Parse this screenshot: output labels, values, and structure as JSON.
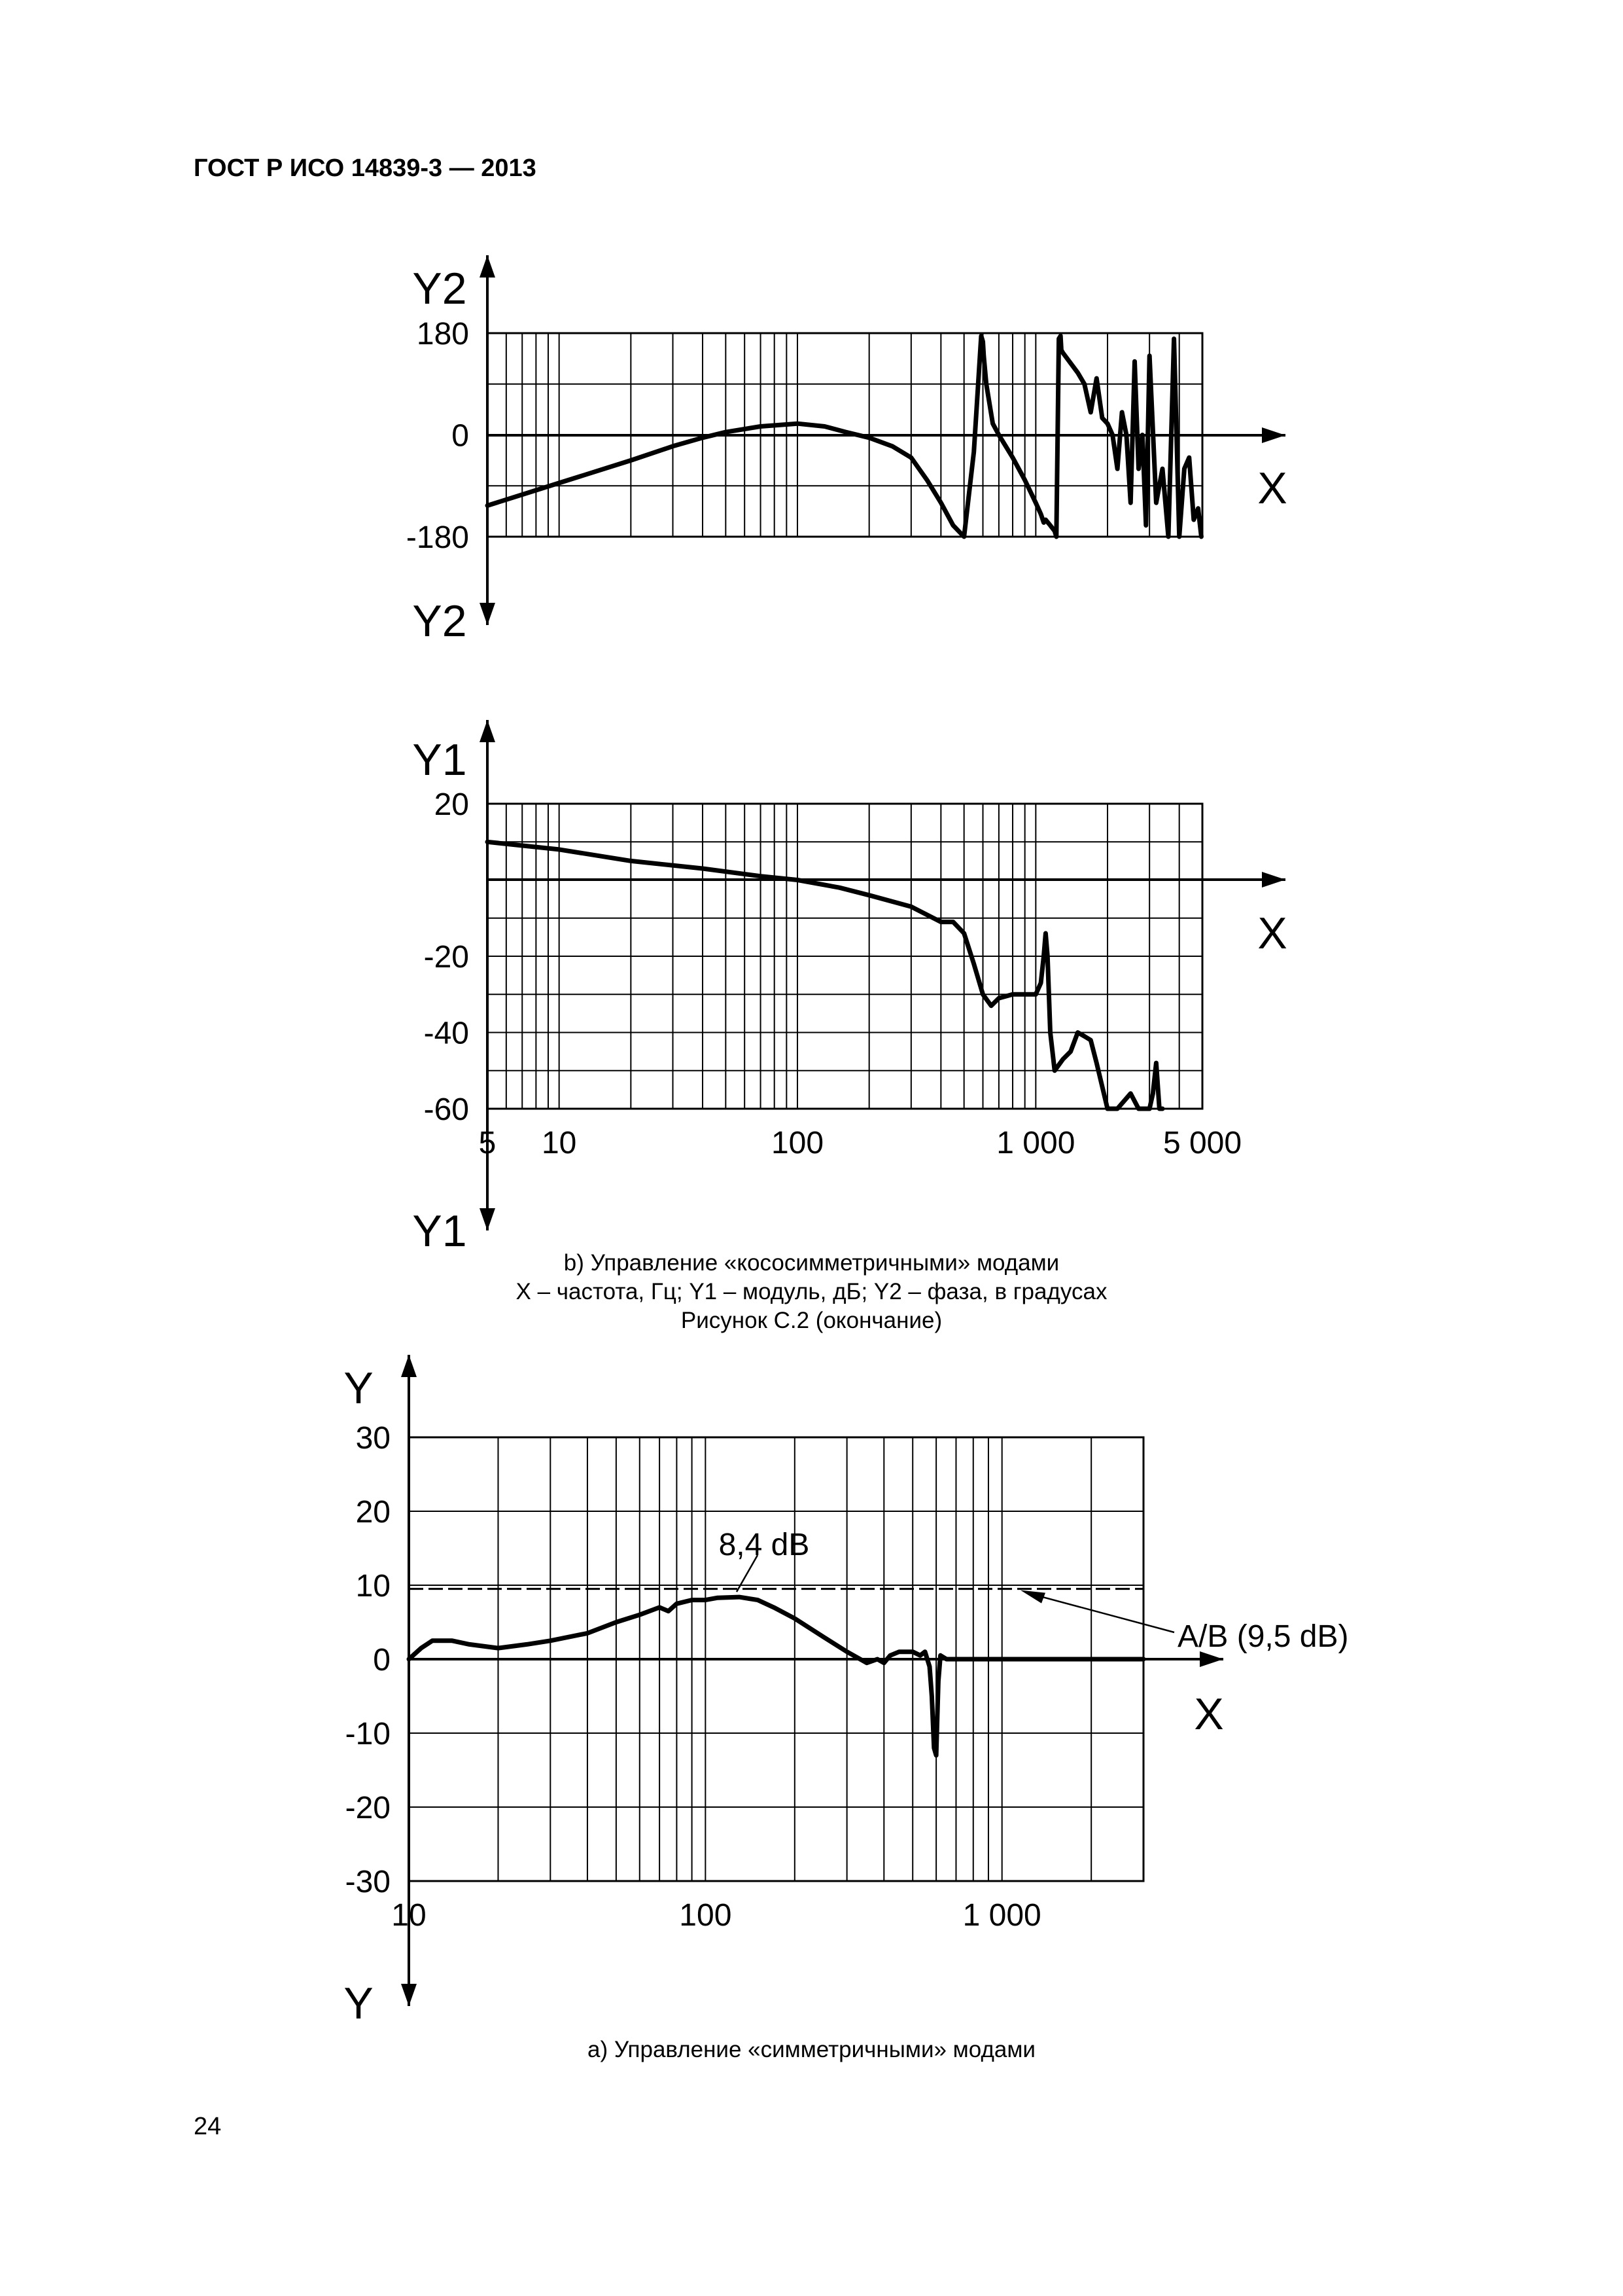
{
  "page": {
    "header": "ГОСТ Р ИСО 14839-3 — 2013",
    "page_number": "24",
    "caption_b_title": "b) Управление «кососимметричными» модами",
    "caption_b_legend": "X – частота, Гц; Y1 – модуль, дБ; Y2 – фаза, в градусах",
    "caption_b_figure": "Рисунок С.2 (окончание)",
    "caption_a": "a) Управление «симметричными» модами"
  },
  "chart_data": [
    {
      "id": "phase",
      "type": "line",
      "x_scale": "log",
      "xlim": [
        5,
        5000
      ],
      "ylim": [
        -180,
        180
      ],
      "yticks": [
        180,
        0,
        -180
      ],
      "ytick_labels": [
        "180",
        "0",
        "-180"
      ],
      "x_axis_label": "X",
      "y_axis_label_top": "Y2",
      "y_axis_label_bottom": "Y2",
      "grid": true,
      "series": [
        {
          "x": [
            5,
            10,
            20,
            30,
            40,
            50,
            70,
            100,
            130,
            160,
            200,
            250,
            300,
            350,
            400,
            450,
            500,
            550,
            590,
            600,
            605,
            620,
            660,
            700,
            800,
            900,
            1000,
            1050,
            1080,
            1100,
            1150,
            1200,
            1220,
            1250,
            1270,
            1280,
            1300,
            1500,
            1600,
            1700,
            1800,
            1900,
            2000,
            2100,
            2200,
            2300,
            2400,
            2500,
            2600,
            2700,
            2800,
            2900,
            3000,
            3200,
            3400,
            3600,
            3800,
            4000,
            4200,
            4400,
            4600,
            4800,
            4950
          ],
          "y": [
            -125,
            -85,
            -45,
            -20,
            -5,
            5,
            15,
            20,
            15,
            5,
            -5,
            -20,
            -40,
            -80,
            -120,
            -160,
            -180,
            -30,
            175,
            165,
            140,
            90,
            20,
            0,
            -40,
            -80,
            -120,
            -140,
            -155,
            -150,
            -160,
            -170,
            -180,
            170,
            175,
            150,
            145,
            110,
            90,
            40,
            100,
            30,
            20,
            0,
            -60,
            40,
            0,
            -120,
            130,
            -60,
            0,
            -160,
            140,
            -120,
            -60,
            -180,
            170,
            -180,
            -60,
            -40,
            -150,
            -130,
            -180
          ]
        }
      ]
    },
    {
      "id": "magnitude",
      "type": "line",
      "x_scale": "log",
      "xlim": [
        5,
        5000
      ],
      "ylim": [
        -60,
        20
      ],
      "yticks": [
        20,
        -20,
        -40,
        -60
      ],
      "ytick_labels": [
        "20",
        "-20",
        "-40",
        "-60"
      ],
      "xticks": [
        5,
        10,
        100,
        1000,
        5000
      ],
      "xtick_labels": [
        "5",
        "10",
        "100",
        "1 000",
        "5 000"
      ],
      "x_axis_label": "X",
      "y_axis_label_top": "Y1",
      "y_axis_label_bottom": "Y1",
      "grid": true,
      "series": [
        {
          "x": [
            5,
            10,
            20,
            40,
            70,
            100,
            150,
            200,
            300,
            400,
            450,
            500,
            550,
            600,
            650,
            700,
            800,
            900,
            1000,
            1050,
            1080,
            1100,
            1120,
            1150,
            1200,
            1300,
            1400,
            1500,
            1600,
            1700,
            1800,
            2000,
            2200,
            2500,
            2700,
            3000,
            3100,
            3200,
            3300,
            3400
          ],
          "y": [
            10,
            8,
            5,
            3,
            1,
            0,
            -2,
            -4,
            -7,
            -11,
            -11,
            -14,
            -22,
            -30,
            -33,
            -31,
            -30,
            -30,
            -30,
            -27,
            -20,
            -14,
            -20,
            -40,
            -50,
            -47,
            -45,
            -40,
            -41,
            -42,
            -48,
            -62,
            -64,
            -56,
            -60,
            -62,
            -56,
            -48,
            -60,
            -60
          ]
        }
      ]
    },
    {
      "id": "symmetric",
      "type": "line",
      "x_scale": "log",
      "xlim": [
        10,
        3000
      ],
      "ylim": [
        -30,
        30
      ],
      "yticks": [
        30,
        20,
        10,
        0,
        -10,
        -20,
        -30
      ],
      "ytick_labels": [
        "30",
        "20",
        "10",
        "0",
        "-10",
        "-20",
        "-30"
      ],
      "xticks": [
        10,
        100,
        1000
      ],
      "xtick_labels": [
        "10",
        "100",
        "1 000"
      ],
      "x_axis_label": "X",
      "y_axis_label_top": "Y",
      "y_axis_label_bottom": "Y",
      "grid": true,
      "annotations": [
        "8,4 dB",
        "A/B (9,5 dB)"
      ],
      "reference_line": {
        "y": 9.5,
        "label": "A/B (9,5 dB)"
      },
      "peak_annotation": {
        "x": 130,
        "y": 8.4,
        "label": "8,4 dB"
      },
      "series": [
        {
          "x": [
            10,
            11,
            12,
            14,
            16,
            20,
            25,
            30,
            40,
            50,
            60,
            70,
            75,
            80,
            90,
            100,
            110,
            130,
            150,
            170,
            200,
            250,
            300,
            350,
            380,
            400,
            420,
            450,
            500,
            530,
            550,
            570,
            580,
            590,
            600,
            610,
            620,
            650,
            700,
            1000,
            2000,
            3000
          ],
          "y": [
            0,
            1.5,
            2.5,
            2.5,
            2,
            1.5,
            2,
            2.5,
            3.5,
            5,
            6,
            7,
            6.5,
            7.5,
            8,
            8,
            8.3,
            8.4,
            8,
            7,
            5.5,
            3,
            1,
            -0.5,
            0,
            -0.5,
            0.5,
            1,
            1,
            0.5,
            1,
            -1,
            -5,
            -12,
            -13,
            -3,
            0.5,
            0,
            0,
            0,
            0,
            0
          ]
        }
      ]
    }
  ]
}
